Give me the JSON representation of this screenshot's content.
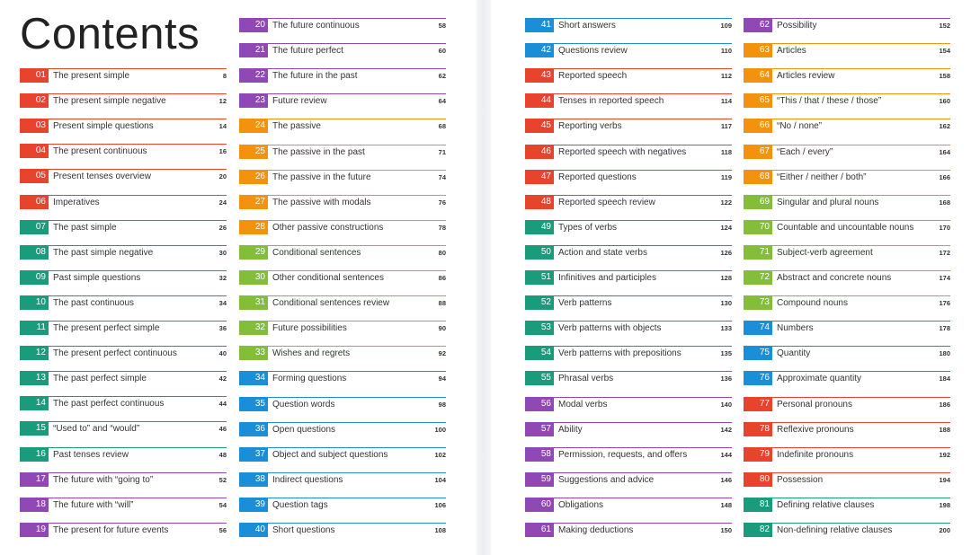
{
  "title": "Contents",
  "colors": {
    "red": "#e8432d",
    "green": "#1a9b7c",
    "purple": "#9048b5",
    "orange": "#f2920d",
    "lime": "#84bd3a",
    "blue": "#1b8ed8"
  },
  "columns": [
    [
      {
        "num": "01",
        "label": "The present simple",
        "page": "8",
        "color": "red"
      },
      {
        "num": "02",
        "label": "The present simple negative",
        "page": "12",
        "color": "red"
      },
      {
        "num": "03",
        "label": "Present simple questions",
        "page": "14",
        "color": "red"
      },
      {
        "num": "04",
        "label": "The present continuous",
        "page": "16",
        "color": "red"
      },
      {
        "num": "05",
        "label": "Present tenses overview",
        "page": "20",
        "color": "red"
      },
      {
        "num": "06",
        "label": "Imperatives",
        "page": "24",
        "color": "red"
      },
      {
        "num": "07",
        "label": "The past simple",
        "page": "26",
        "color": "green"
      },
      {
        "num": "08",
        "label": "The past simple negative",
        "page": "30",
        "color": "green"
      },
      {
        "num": "09",
        "label": "Past simple questions",
        "page": "32",
        "color": "green"
      },
      {
        "num": "10",
        "label": "The past continuous",
        "page": "34",
        "color": "green"
      },
      {
        "num": "11",
        "label": "The present perfect simple",
        "page": "36",
        "color": "green"
      },
      {
        "num": "12",
        "label": "The present perfect continuous",
        "page": "40",
        "color": "green"
      },
      {
        "num": "13",
        "label": "The past perfect simple",
        "page": "42",
        "color": "green"
      },
      {
        "num": "14",
        "label": "The past perfect continuous",
        "page": "44",
        "color": "green"
      },
      {
        "num": "15",
        "label": "“Used to” and “would”",
        "page": "46",
        "color": "green"
      },
      {
        "num": "16",
        "label": "Past tenses review",
        "page": "48",
        "color": "green"
      },
      {
        "num": "17",
        "label": "The future with “going to”",
        "page": "52",
        "color": "purple"
      },
      {
        "num": "18",
        "label": "The future with “will”",
        "page": "54",
        "color": "purple"
      },
      {
        "num": "19",
        "label": "The present for future events",
        "page": "56",
        "color": "purple"
      }
    ],
    [
      {
        "num": "20",
        "label": "The future continuous",
        "page": "58",
        "color": "purple"
      },
      {
        "num": "21",
        "label": "The future perfect",
        "page": "60",
        "color": "purple"
      },
      {
        "num": "22",
        "label": "The future in the past",
        "page": "62",
        "color": "purple"
      },
      {
        "num": "23",
        "label": "Future review",
        "page": "64",
        "color": "purple"
      },
      {
        "num": "24",
        "label": "The passive",
        "page": "68",
        "color": "orange"
      },
      {
        "num": "25",
        "label": "The passive in the past",
        "page": "71",
        "color": "orange"
      },
      {
        "num": "26",
        "label": "The passive in the future",
        "page": "74",
        "color": "orange"
      },
      {
        "num": "27",
        "label": "The passive with modals",
        "page": "76",
        "color": "orange"
      },
      {
        "num": "28",
        "label": "Other passive constructions",
        "page": "78",
        "color": "orange"
      },
      {
        "num": "29",
        "label": "Conditional sentences",
        "page": "80",
        "color": "lime"
      },
      {
        "num": "30",
        "label": "Other conditional sentences",
        "page": "86",
        "color": "lime"
      },
      {
        "num": "31",
        "label": "Conditional sentences review",
        "page": "88",
        "color": "lime"
      },
      {
        "num": "32",
        "label": "Future possibilities",
        "page": "90",
        "color": "lime"
      },
      {
        "num": "33",
        "label": "Wishes and regrets",
        "page": "92",
        "color": "lime"
      },
      {
        "num": "34",
        "label": "Forming questions",
        "page": "94",
        "color": "blue"
      },
      {
        "num": "35",
        "label": "Question words",
        "page": "98",
        "color": "blue"
      },
      {
        "num": "36",
        "label": "Open questions",
        "page": "100",
        "color": "blue"
      },
      {
        "num": "37",
        "label": "Object and subject questions",
        "page": "102",
        "color": "blue"
      },
      {
        "num": "38",
        "label": "Indirect questions",
        "page": "104",
        "color": "blue"
      },
      {
        "num": "39",
        "label": "Question tags",
        "page": "106",
        "color": "blue"
      },
      {
        "num": "40",
        "label": "Short questions",
        "page": "108",
        "color": "blue"
      }
    ],
    [
      {
        "num": "41",
        "label": "Short answers",
        "page": "109",
        "color": "blue"
      },
      {
        "num": "42",
        "label": "Questions review",
        "page": "110",
        "color": "blue"
      },
      {
        "num": "43",
        "label": "Reported speech",
        "page": "112",
        "color": "red"
      },
      {
        "num": "44",
        "label": "Tenses in reported speech",
        "page": "114",
        "color": "red"
      },
      {
        "num": "45",
        "label": "Reporting verbs",
        "page": "117",
        "color": "red"
      },
      {
        "num": "46",
        "label": "Reported speech with negatives",
        "page": "118",
        "color": "red"
      },
      {
        "num": "47",
        "label": "Reported questions",
        "page": "119",
        "color": "red"
      },
      {
        "num": "48",
        "label": "Reported speech review",
        "page": "122",
        "color": "red"
      },
      {
        "num": "49",
        "label": "Types of verbs",
        "page": "124",
        "color": "green"
      },
      {
        "num": "50",
        "label": "Action and state verbs",
        "page": "126",
        "color": "green"
      },
      {
        "num": "51",
        "label": "Infinitives and participles",
        "page": "128",
        "color": "green"
      },
      {
        "num": "52",
        "label": "Verb patterns",
        "page": "130",
        "color": "green"
      },
      {
        "num": "53",
        "label": "Verb patterns with objects",
        "page": "133",
        "color": "green"
      },
      {
        "num": "54",
        "label": "Verb patterns with prepositions",
        "page": "135",
        "color": "green"
      },
      {
        "num": "55",
        "label": "Phrasal verbs",
        "page": "136",
        "color": "green"
      },
      {
        "num": "56",
        "label": "Modal verbs",
        "page": "140",
        "color": "purple"
      },
      {
        "num": "57",
        "label": "Ability",
        "page": "142",
        "color": "purple"
      },
      {
        "num": "58",
        "label": "Permission, requests, and offers",
        "page": "144",
        "color": "purple"
      },
      {
        "num": "59",
        "label": "Suggestions and advice",
        "page": "146",
        "color": "purple"
      },
      {
        "num": "60",
        "label": "Obligations",
        "page": "148",
        "color": "purple"
      },
      {
        "num": "61",
        "label": "Making deductions",
        "page": "150",
        "color": "purple"
      }
    ],
    [
      {
        "num": "62",
        "label": "Possibility",
        "page": "152",
        "color": "purple"
      },
      {
        "num": "63",
        "label": "Articles",
        "page": "154",
        "color": "orange"
      },
      {
        "num": "64",
        "label": "Articles review",
        "page": "158",
        "color": "orange"
      },
      {
        "num": "65",
        "label": "“This / that / these / those”",
        "page": "160",
        "color": "orange"
      },
      {
        "num": "66",
        "label": "“No / none”",
        "page": "162",
        "color": "orange"
      },
      {
        "num": "67",
        "label": "“Each / every”",
        "page": "164",
        "color": "orange"
      },
      {
        "num": "68",
        "label": "“Either / neither / both”",
        "page": "166",
        "color": "orange"
      },
      {
        "num": "69",
        "label": "Singular and plural nouns",
        "page": "168",
        "color": "lime"
      },
      {
        "num": "70",
        "label": "Countable and uncountable nouns",
        "page": "170",
        "color": "lime"
      },
      {
        "num": "71",
        "label": "Subject-verb agreement",
        "page": "172",
        "color": "lime"
      },
      {
        "num": "72",
        "label": "Abstract and concrete nouns",
        "page": "174",
        "color": "lime"
      },
      {
        "num": "73",
        "label": "Compound nouns",
        "page": "176",
        "color": "lime"
      },
      {
        "num": "74",
        "label": "Numbers",
        "page": "178",
        "color": "blue"
      },
      {
        "num": "75",
        "label": "Quantity",
        "page": "180",
        "color": "blue"
      },
      {
        "num": "76",
        "label": "Approximate quantity",
        "page": "184",
        "color": "blue"
      },
      {
        "num": "77",
        "label": "Personal pronouns",
        "page": "186",
        "color": "red"
      },
      {
        "num": "78",
        "label": "Reflexive pronouns",
        "page": "188",
        "color": "red"
      },
      {
        "num": "79",
        "label": "Indefinite pronouns",
        "page": "192",
        "color": "red"
      },
      {
        "num": "80",
        "label": "Possession",
        "page": "194",
        "color": "red"
      },
      {
        "num": "81",
        "label": "Defining relative clauses",
        "page": "198",
        "color": "green"
      },
      {
        "num": "82",
        "label": "Non-defining relative clauses",
        "page": "200",
        "color": "green"
      }
    ]
  ]
}
